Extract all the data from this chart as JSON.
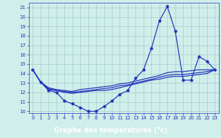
{
  "title": "Graphe des températures (°c)",
  "bg_color": "#d0eeea",
  "grid_color": "#a0cccc",
  "line_color": "#2233bb",
  "xlabel_bg": "#2244cc",
  "xlabel_fg": "#ffffff",
  "xlim": [
    -0.5,
    23.5
  ],
  "ylim": [
    9.8,
    21.5
  ],
  "x_ticks": [
    0,
    1,
    2,
    3,
    4,
    5,
    6,
    7,
    8,
    9,
    10,
    11,
    12,
    13,
    14,
    15,
    16,
    17,
    18,
    19,
    20,
    21,
    22,
    23
  ],
  "y_ticks": [
    10,
    11,
    12,
    13,
    14,
    15,
    16,
    17,
    18,
    19,
    20,
    21
  ],
  "curve_main": {
    "x": [
      0,
      1,
      2,
      3,
      4,
      5,
      6,
      7,
      8,
      9,
      10,
      11,
      12,
      13,
      14,
      15,
      16,
      17,
      18,
      19,
      20,
      21,
      22,
      23
    ],
    "y": [
      14.4,
      13.1,
      12.2,
      12.0,
      11.1,
      10.8,
      10.4,
      10.0,
      10.0,
      10.5,
      11.1,
      11.8,
      12.2,
      13.5,
      14.4,
      16.7,
      19.6,
      21.1,
      18.5,
      13.3,
      13.3,
      15.8,
      15.3,
      14.4
    ]
  },
  "curve_avg1": {
    "x": [
      0,
      1,
      2,
      3,
      4,
      5,
      6,
      7,
      8,
      9,
      10,
      11,
      12,
      13,
      14,
      15,
      16,
      17,
      18,
      19,
      20,
      21,
      22,
      23
    ],
    "y": [
      14.4,
      13.1,
      12.5,
      12.3,
      12.2,
      12.1,
      12.3,
      12.4,
      12.5,
      12.6,
      12.7,
      12.9,
      13.0,
      13.2,
      13.4,
      13.6,
      13.8,
      14.1,
      14.2,
      14.2,
      14.3,
      14.4,
      14.4,
      14.4
    ]
  },
  "curve_avg2": {
    "x": [
      0,
      1,
      2,
      3,
      4,
      5,
      6,
      7,
      8,
      9,
      10,
      11,
      12,
      13,
      14,
      15,
      16,
      17,
      18,
      19,
      20,
      21,
      22,
      23
    ],
    "y": [
      14.4,
      13.1,
      12.4,
      12.2,
      12.1,
      12.0,
      12.1,
      12.2,
      12.3,
      12.4,
      12.5,
      12.7,
      12.8,
      13.0,
      13.2,
      13.4,
      13.6,
      13.8,
      13.9,
      13.9,
      14.0,
      14.1,
      14.2,
      14.4
    ]
  },
  "curve_avg3": {
    "x": [
      0,
      1,
      2,
      3,
      4,
      5,
      6,
      7,
      8,
      9,
      10,
      11,
      12,
      13,
      14,
      15,
      16,
      17,
      18,
      19,
      20,
      21,
      22,
      23
    ],
    "y": [
      14.4,
      13.1,
      12.3,
      12.2,
      12.0,
      11.9,
      12.0,
      12.1,
      12.2,
      12.2,
      12.3,
      12.5,
      12.7,
      12.9,
      13.1,
      13.3,
      13.4,
      13.6,
      13.7,
      13.7,
      13.8,
      13.9,
      14.0,
      14.4
    ]
  }
}
